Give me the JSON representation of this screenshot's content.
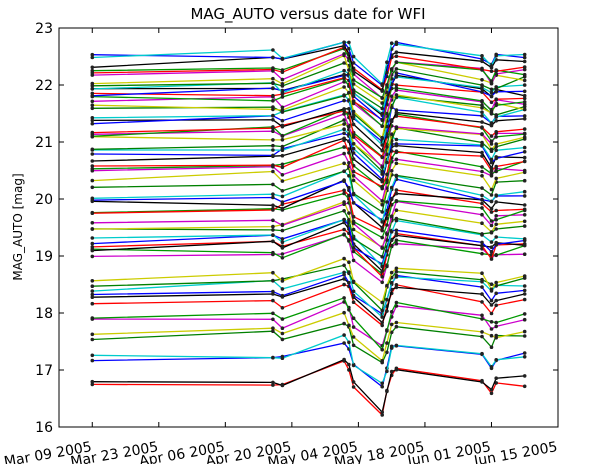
{
  "chart_data": {
    "type": "line",
    "title": "MAG_AUTO versus date for WFI",
    "xlabel": "",
    "ylabel": "MAG_AUTO [mag]",
    "x_tick_labels": [
      "Mar 09 2005",
      "Mar 23 2005",
      "Apr 06 2005",
      "Apr 20 2005",
      "May 04 2005",
      "May 18 2005",
      "Jun 01 2005",
      "Jun 15 2005"
    ],
    "x_tick_dates": [
      "2005-03-09",
      "2005-03-23",
      "2005-04-06",
      "2005-04-20",
      "2005-05-04",
      "2005-05-18",
      "2005-06-01",
      "2005-06-15"
    ],
    "y_ticks": [
      16,
      17,
      18,
      19,
      20,
      21,
      22,
      23
    ],
    "xlim": [
      "2005-03-02",
      "2005-06-15"
    ],
    "ylim": [
      16,
      23
    ],
    "grid": false,
    "legend": "none",
    "observation_dates": [
      "2005-03-09",
      "2005-04-16",
      "2005-04-18",
      "2005-05-01",
      "2005-05-02",
      "2005-05-03",
      "2005-05-09",
      "2005-05-10",
      "2005-05-11",
      "2005-05-12",
      "2005-05-30",
      "2005-06-01",
      "2005-06-02",
      "2005-06-08"
    ],
    "colors": [
      "#ff0000",
      "#000000",
      "#0000ff",
      "#00cccc",
      "#008000",
      "#cccc00",
      "#cc00cc",
      "#009900"
    ],
    "n_series": 60,
    "series_baselines": [
      16.72,
      16.78,
      17.18,
      17.2,
      17.55,
      17.62,
      17.82,
      17.88,
      18.18,
      18.25,
      18.35,
      18.45,
      18.52,
      18.6,
      19.0,
      19.05,
      19.12,
      19.18,
      19.25,
      19.32,
      19.42,
      19.52,
      19.62,
      19.72,
      19.82,
      19.92,
      20.02,
      20.1,
      20.22,
      20.35,
      20.45,
      20.55,
      20.62,
      20.72,
      20.8,
      20.88,
      20.95,
      21.02,
      21.08,
      21.15,
      21.22,
      21.3,
      21.38,
      21.45,
      21.52,
      21.6,
      21.68,
      21.72,
      21.8,
      21.85,
      21.9,
      21.95,
      22.02,
      22.1,
      22.18,
      22.22,
      22.3,
      22.38,
      22.45,
      22.52
    ]
  }
}
